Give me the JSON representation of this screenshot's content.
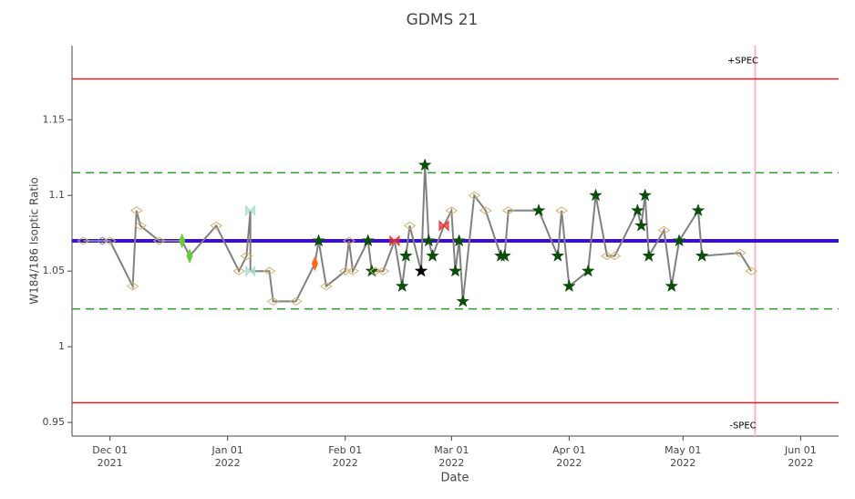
{
  "chart_data": {
    "type": "line",
    "title": "GDMS 21",
    "x_label": "Date",
    "y_label": "W184/186 Isoptic Ratio",
    "xlim": [
      "2021-11-21",
      "2022-06-11"
    ],
    "ylim": [
      0.941,
      1.199
    ],
    "yticks": [
      0.95,
      1,
      1.05,
      1.1,
      1.15
    ],
    "xticks": [
      {
        "value": "2021-12-01",
        "label": [
          "Dec 01",
          "2021"
        ]
      },
      {
        "value": "2022-01-01",
        "label": [
          "Jan 01",
          "2022"
        ]
      },
      {
        "value": "2022-02-01",
        "label": [
          "Feb 01",
          "2022"
        ]
      },
      {
        "value": "2022-03-01",
        "label": [
          "Mar 01",
          "2022"
        ]
      },
      {
        "value": "2022-04-01",
        "label": [
          "Apr 01",
          "2022"
        ]
      },
      {
        "value": "2022-05-01",
        "label": [
          "May 01",
          "2022"
        ]
      },
      {
        "value": "2022-06-01",
        "label": [
          "Jun 01",
          "2022"
        ]
      }
    ],
    "grid": false,
    "x": [
      "2021-11-24",
      "2021-11-29",
      "2021-12-01",
      "2021-12-07",
      "2021-12-08",
      "2021-12-09",
      "2021-12-14",
      "2021-12-20",
      "2021-12-22",
      "2021-12-29",
      "2022-01-04",
      "2022-01-06",
      "2022-01-07",
      "2022-01-07",
      "2022-01-12",
      "2022-01-13",
      "2022-01-19",
      "2022-01-24",
      "2022-01-25",
      "2022-01-27",
      "2022-02-01",
      "2022-02-02",
      "2022-02-03",
      "2022-02-07",
      "2022-02-08",
      "2022-02-09",
      "2022-02-11",
      "2022-02-14",
      "2022-02-16",
      "2022-02-17",
      "2022-02-18",
      "2022-02-21",
      "2022-02-22",
      "2022-02-23",
      "2022-02-24",
      "2022-02-27",
      "2022-03-01",
      "2022-03-02",
      "2022-03-03",
      "2022-03-04",
      "2022-03-07",
      "2022-03-10",
      "2022-03-14",
      "2022-03-15",
      "2022-03-16",
      "2022-03-24",
      "2022-03-29",
      "2022-03-30",
      "2022-04-01",
      "2022-04-06",
      "2022-04-08",
      "2022-04-11",
      "2022-04-13",
      "2022-04-19",
      "2022-04-20",
      "2022-04-21",
      "2022-04-22",
      "2022-04-26",
      "2022-04-28",
      "2022-04-30",
      "2022-05-05",
      "2022-05-06",
      "2022-05-16",
      "2022-05-19"
    ],
    "series": [
      {
        "color": "#808080",
        "values": [
          1.07,
          1.07,
          1.07,
          1.04,
          1.09,
          1.08,
          1.07,
          1.07,
          1.06,
          1.08,
          1.05,
          1.06,
          1.09,
          1.05,
          1.05,
          1.03,
          1.03,
          1.055,
          1.07,
          1.04,
          1.05,
          1.07,
          1.05,
          1.07,
          1.05,
          1.05,
          1.05,
          1.07,
          1.04,
          1.06,
          1.08,
          1.05,
          1.12,
          1.07,
          1.06,
          1.08,
          1.09,
          1.05,
          1.07,
          1.03,
          1.1,
          1.09,
          1.06,
          1.06,
          1.09,
          1.09,
          1.06,
          1.09,
          1.04,
          1.05,
          1.1,
          1.06,
          1.06,
          1.09,
          1.08,
          1.1,
          1.06,
          1.077,
          1.04,
          1.07,
          1.09,
          1.06,
          1.062,
          1.05
        ],
        "marker_symbols": [
          "diamond-open",
          "diamond-open",
          "diamond-open",
          "diamond-open",
          "diamond-open",
          "diamond-open",
          "diamond-open",
          "diamond-tall",
          "diamond-tall",
          "diamond-open",
          "diamond-open",
          "diamond-open",
          "bowtie",
          "bowtie",
          "diamond-open",
          "diamond-open",
          "diamond-open",
          "diamond-tall",
          "star",
          "diamond-open",
          "diamond-open",
          "diamond-open",
          "diamond-open",
          "star",
          "star",
          "diamond-open",
          "diamond-open",
          "bowtie",
          "star",
          "star",
          "diamond-open",
          "star",
          "star",
          "star",
          "star",
          "bowtie",
          "diamond-open",
          "star",
          "star",
          "star",
          "diamond-open",
          "diamond-open",
          "star",
          "star",
          "diamond-open",
          "star",
          "star",
          "diamond-open",
          "star",
          "star",
          "star",
          "diamond-open",
          "diamond-open",
          "star",
          "star",
          "star",
          "star",
          "diamond-open",
          "star",
          "star",
          "star",
          "star",
          "diamond-open",
          "diamond-open"
        ],
        "marker_colors": [
          "#d2b26b",
          "#8c78d0",
          "#d2b26b",
          "#d2b26b",
          "#d2b26b",
          "#d2b26b",
          "#d2b26b",
          "#66cc33",
          "#66cc33",
          "#d2b26b",
          "#d2b26b",
          "#d2b26b",
          "#a9dcd4",
          "#a9dcd4",
          "#d2b26b",
          "#d2b26b",
          "#d2b26b",
          "#ff6a1a",
          "#0b4d0b",
          "#d2b26b",
          "#d2b26b",
          "#d2b26b",
          "#d2b26b",
          "#0b4d0b",
          "#0b4d0b",
          "#d2b26b",
          "#d2b26b",
          "#ee2a2a",
          "#0b4d0b",
          "#0b4d0b",
          "#d2b26b",
          "#000000",
          "#0b4d0b",
          "#0b4d0b",
          "#0b4d0b",
          "#ee2a2a",
          "#d2b26b",
          "#0b4d0b",
          "#0b4d0b",
          "#0b4d0b",
          "#d2b26b",
          "#d2b26b",
          "#0b4d0b",
          "#0b4d0b",
          "#d2b26b",
          "#0b4d0b",
          "#0b4d0b",
          "#d2b26b",
          "#0b4d0b",
          "#0b4d0b",
          "#0b4d0b",
          "#d2b26b",
          "#d2b26b",
          "#0b4d0b",
          "#0b4d0b",
          "#0b4d0b",
          "#0b4d0b",
          "#d2b26b",
          "#0b4d0b",
          "#0b4d0b",
          "#0b4d0b",
          "#0b4d0b",
          "#d2b26b",
          "#d2b26b"
        ]
      }
    ],
    "hlines": [
      {
        "value": 1.177,
        "color": "#e02020",
        "label": "+SPEC",
        "label_side": "above"
      },
      {
        "value": 0.963,
        "color": "#e02020",
        "label": "-SPEC",
        "label_side": "below"
      },
      {
        "value": 1.115,
        "color": "#2a9a2a",
        "dash": true
      },
      {
        "value": 1.025,
        "color": "#2a9a2a",
        "dash": true
      },
      {
        "value": 1.07,
        "color": "#3a10c8",
        "width": 4
      }
    ],
    "vlines": [
      {
        "x": "2022-05-20",
        "color": "#ffb6c1"
      }
    ]
  }
}
